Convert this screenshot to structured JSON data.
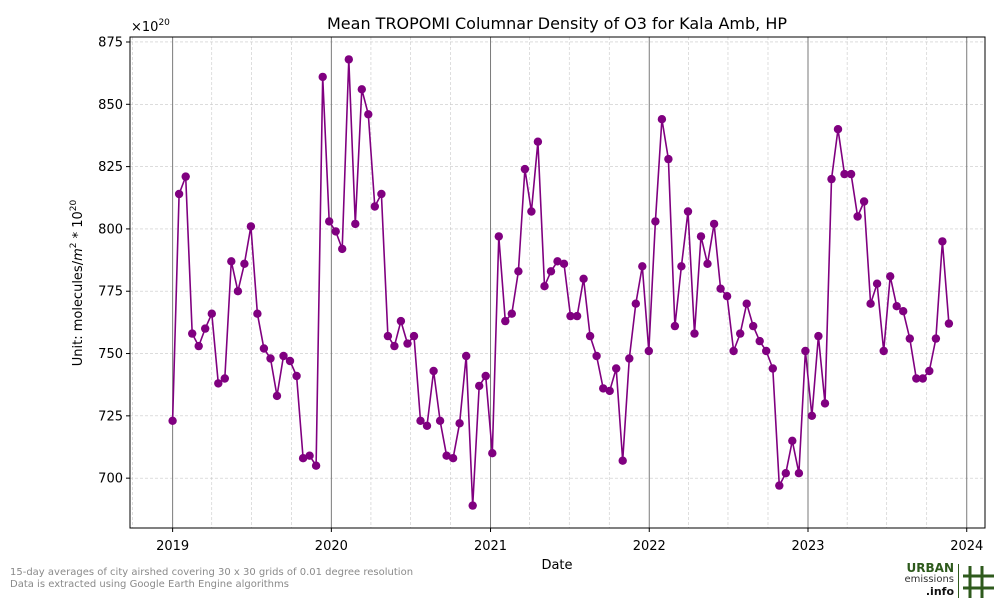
{
  "chart_data": {
    "type": "line",
    "title": "Mean TROPOMI Columnar Density of O3 for Kala Amb, HP",
    "xlabel": "Date",
    "ylabel_prefix": "Unit: molecules/",
    "ylabel_m": "m",
    "ylabel_m_exp": "2",
    "ylabel_mid": " * 10",
    "ylabel_10_exp": "20",
    "offset_text_base": "×10",
    "offset_text_exp": "20",
    "xlim": [
      "2018-09-25",
      "2024-02-12"
    ],
    "ylim": [
      680,
      877
    ],
    "yticks": [
      700,
      725,
      750,
      775,
      800,
      825,
      850,
      875
    ],
    "xticks": [
      "2019",
      "2020",
      "2021",
      "2022",
      "2023",
      "2024"
    ],
    "xtick_dates": [
      "2019-01-01",
      "2020-01-01",
      "2021-01-01",
      "2022-01-01",
      "2023-01-01",
      "2024-01-01"
    ],
    "grid": true,
    "line_color": "#800080",
    "points": [
      [
        "2019-01-01",
        723
      ],
      [
        "2019-01-16",
        814
      ],
      [
        "2019-01-31",
        821
      ],
      [
        "2019-02-15",
        758
      ],
      [
        "2019-03-02",
        753
      ],
      [
        "2019-03-17",
        760
      ],
      [
        "2019-04-01",
        766
      ],
      [
        "2019-04-16",
        738
      ],
      [
        "2019-05-01",
        740
      ],
      [
        "2019-05-16",
        787
      ],
      [
        "2019-05-31",
        775
      ],
      [
        "2019-06-15",
        786
      ],
      [
        "2019-06-30",
        801
      ],
      [
        "2019-07-15",
        766
      ],
      [
        "2019-07-30",
        752
      ],
      [
        "2019-08-14",
        748
      ],
      [
        "2019-08-29",
        733
      ],
      [
        "2019-09-13",
        749
      ],
      [
        "2019-09-28",
        747
      ],
      [
        "2019-10-13",
        741
      ],
      [
        "2019-10-28",
        708
      ],
      [
        "2019-11-12",
        709
      ],
      [
        "2019-11-27",
        705
      ],
      [
        "2019-12-12",
        861
      ],
      [
        "2019-12-27",
        803
      ],
      [
        "2020-01-11",
        799
      ],
      [
        "2020-01-26",
        792
      ],
      [
        "2020-02-10",
        868
      ],
      [
        "2020-02-25",
        802
      ],
      [
        "2020-03-11",
        856
      ],
      [
        "2020-03-26",
        846
      ],
      [
        "2020-04-10",
        809
      ],
      [
        "2020-04-25",
        814
      ],
      [
        "2020-05-10",
        757
      ],
      [
        "2020-05-25",
        753
      ],
      [
        "2020-06-09",
        763
      ],
      [
        "2020-06-24",
        754
      ],
      [
        "2020-07-09",
        757
      ],
      [
        "2020-07-24",
        723
      ],
      [
        "2020-08-08",
        721
      ],
      [
        "2020-08-23",
        743
      ],
      [
        "2020-09-07",
        723
      ],
      [
        "2020-09-22",
        709
      ],
      [
        "2020-10-07",
        708
      ],
      [
        "2020-10-22",
        722
      ],
      [
        "2020-11-06",
        749
      ],
      [
        "2020-11-21",
        689
      ],
      [
        "2020-12-06",
        737
      ],
      [
        "2020-12-21",
        741
      ],
      [
        "2021-01-05",
        710
      ],
      [
        "2021-01-20",
        797
      ],
      [
        "2021-02-04",
        763
      ],
      [
        "2021-02-19",
        766
      ],
      [
        "2021-03-06",
        783
      ],
      [
        "2021-03-21",
        824
      ],
      [
        "2021-04-05",
        807
      ],
      [
        "2021-04-20",
        835
      ],
      [
        "2021-05-05",
        777
      ],
      [
        "2021-05-20",
        783
      ],
      [
        "2021-06-04",
        787
      ],
      [
        "2021-06-19",
        786
      ],
      [
        "2021-07-04",
        765
      ],
      [
        "2021-07-19",
        765
      ],
      [
        "2021-08-03",
        780
      ],
      [
        "2021-08-18",
        757
      ],
      [
        "2021-09-02",
        749
      ],
      [
        "2021-09-17",
        736
      ],
      [
        "2021-10-02",
        735
      ],
      [
        "2021-10-17",
        744
      ],
      [
        "2021-11-01",
        707
      ],
      [
        "2021-11-16",
        748
      ],
      [
        "2021-12-01",
        770
      ],
      [
        "2021-12-16",
        785
      ],
      [
        "2021-12-31",
        751
      ],
      [
        "2022-01-15",
        803
      ],
      [
        "2022-01-30",
        844
      ],
      [
        "2022-02-14",
        828
      ],
      [
        "2022-03-01",
        761
      ],
      [
        "2022-03-16",
        785
      ],
      [
        "2022-03-31",
        807
      ],
      [
        "2022-04-15",
        758
      ],
      [
        "2022-04-30",
        797
      ],
      [
        "2022-05-15",
        786
      ],
      [
        "2022-05-30",
        802
      ],
      [
        "2022-06-14",
        776
      ],
      [
        "2022-06-29",
        773
      ],
      [
        "2022-07-14",
        751
      ],
      [
        "2022-07-29",
        758
      ],
      [
        "2022-08-13",
        770
      ],
      [
        "2022-08-28",
        761
      ],
      [
        "2022-09-12",
        755
      ],
      [
        "2022-09-27",
        751
      ],
      [
        "2022-10-12",
        744
      ],
      [
        "2022-10-27",
        697
      ],
      [
        "2022-11-11",
        702
      ],
      [
        "2022-11-26",
        715
      ],
      [
        "2022-12-11",
        702
      ],
      [
        "2022-12-26",
        751
      ],
      [
        "2023-01-10",
        725
      ],
      [
        "2023-01-25",
        757
      ],
      [
        "2023-02-09",
        730
      ],
      [
        "2023-02-24",
        820
      ],
      [
        "2023-03-11",
        840
      ],
      [
        "2023-03-26",
        822
      ],
      [
        "2023-04-10",
        822
      ],
      [
        "2023-04-25",
        805
      ],
      [
        "2023-05-10",
        811
      ],
      [
        "2023-05-25",
        770
      ],
      [
        "2023-06-09",
        778
      ],
      [
        "2023-06-24",
        751
      ],
      [
        "2023-07-09",
        781
      ],
      [
        "2023-07-24",
        769
      ],
      [
        "2023-08-08",
        767
      ],
      [
        "2023-08-23",
        756
      ],
      [
        "2023-09-07",
        740
      ],
      [
        "2023-09-22",
        740
      ],
      [
        "2023-10-07",
        743
      ],
      [
        "2023-10-22",
        756
      ],
      [
        "2023-11-06",
        795
      ],
      [
        "2023-11-21",
        762
      ]
    ]
  },
  "footnote_line1": "15-day averages of city airshed covering 30 x 30 grids of 0.01 degree resolution",
  "footnote_line2": "Data is extracted using Google Earth Engine algorithms",
  "logo": {
    "line1": "URBAN",
    "line2": "emissions",
    "line3": ".info",
    "icon": "hash-grid-icon",
    "color": "#2e5a1c"
  }
}
